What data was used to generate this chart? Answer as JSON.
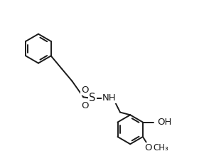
{
  "background": "#ffffff",
  "line_color": "#1a1a1a",
  "line_width": 1.4,
  "font_size": 8.5,
  "fig_width": 2.87,
  "fig_height": 2.33,
  "dpi": 100,
  "xlim": [
    0,
    10
  ],
  "ylim": [
    0,
    8
  ]
}
